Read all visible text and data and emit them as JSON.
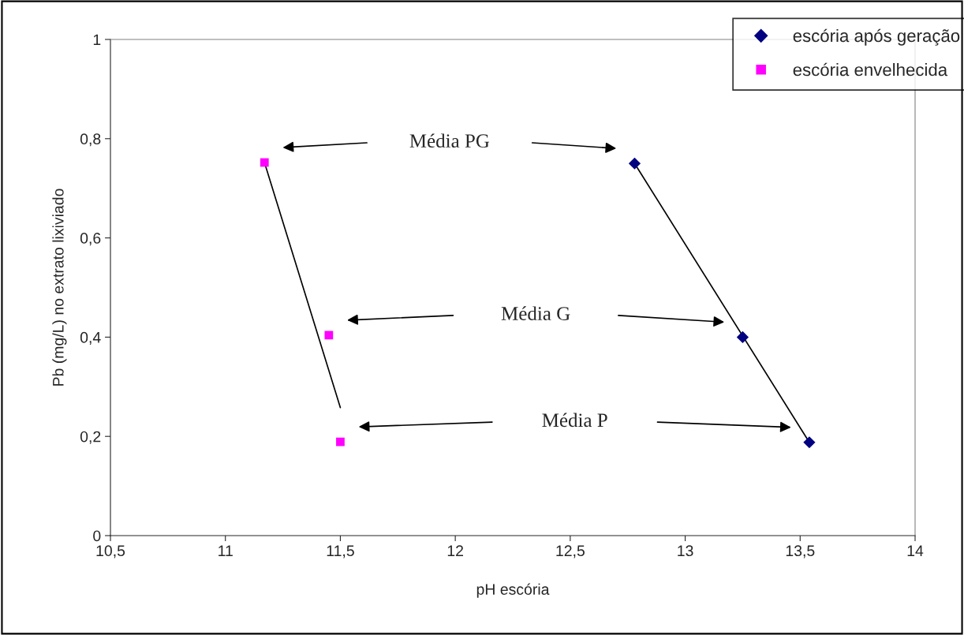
{
  "chart_data": {
    "type": "scatter",
    "xlabel": "pH escória",
    "ylabel": "Pb (mg/L) no extrato lixiviado",
    "xlim": [
      10.5,
      14
    ],
    "xticks": [
      {
        "value": 10.5,
        "label": "10,5"
      },
      11,
      {
        "value": 11.5,
        "label": "11,5"
      },
      12,
      {
        "value": 12.5,
        "label": "12,5"
      },
      13,
      {
        "value": 13.5,
        "label": "13,5"
      },
      14
    ],
    "ylim": [
      0,
      1
    ],
    "yticks": [
      0,
      {
        "value": 0.2,
        "label": "0,2"
      },
      {
        "value": 0.4,
        "label": "0,4"
      },
      {
        "value": 0.6,
        "label": "0,6"
      },
      {
        "value": 0.8,
        "label": "0,8"
      },
      1
    ],
    "grid": false,
    "legend": "top right",
    "series": [
      {
        "name": "escória após geração",
        "color": "#000080",
        "marker": "diamond",
        "x": [
          12.78,
          13.25,
          13.54
        ],
        "values": [
          0.75,
          0.4,
          0.188
        ]
      },
      {
        "name": "escória envelhecida",
        "color": "#ff00ff",
        "marker": "square",
        "x": [
          11.17,
          11.45,
          11.5
        ],
        "values": [
          0.752,
          0.404,
          0.189
        ]
      },
      {
        "type": "line",
        "color": "#000000",
        "marker": "none",
        "x": [
          12.78,
          13.54
        ],
        "values": [
          0.75,
          0.188
        ]
      },
      {
        "type": "line",
        "color": "#000000",
        "marker": "none",
        "x": [
          11.17,
          11.5
        ],
        "values": [
          0.752,
          0.258
        ]
      }
    ],
    "annotations": [
      "Média PG",
      "Média G",
      "Média P"
    ]
  }
}
